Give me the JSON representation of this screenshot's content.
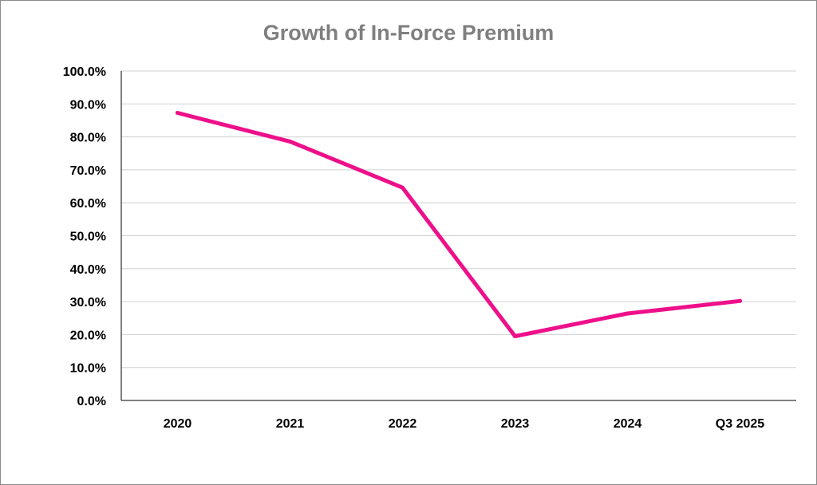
{
  "chart_data": {
    "type": "line",
    "title": "Growth of In-Force Premium",
    "xlabel": "",
    "ylabel": "",
    "categories": [
      "2020",
      "2021",
      "2022",
      "2023",
      "2024",
      "Q3 2025"
    ],
    "series": [
      {
        "name": "Growth of In-Force Premium",
        "values": [
          87.3,
          78.6,
          64.6,
          19.5,
          26.4,
          30.2
        ],
        "color": "#ee0f8a"
      }
    ],
    "ylim": [
      0,
      100
    ],
    "ytick_step": 10,
    "ytick_labels": [
      "0.0%",
      "10.0%",
      "20.0%",
      "30.0%",
      "40.0%",
      "50.0%",
      "60.0%",
      "70.0%",
      "80.0%",
      "90.0%",
      "100.0%"
    ],
    "grid": true,
    "legend": "none"
  }
}
